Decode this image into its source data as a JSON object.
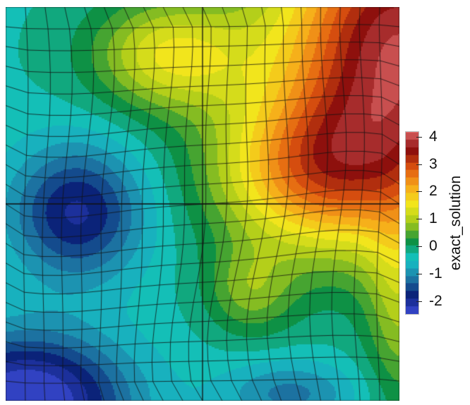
{
  "chart_data": {
    "type": "heatmap",
    "field": "exact_solution",
    "colorbar": {
      "title": "exact_solution",
      "range": [
        -2.5,
        4.2
      ],
      "ticks": [
        {
          "value": 4,
          "label": "4"
        },
        {
          "value": 3,
          "label": "3"
        },
        {
          "value": 2,
          "label": "2"
        },
        {
          "value": 1,
          "label": "1"
        },
        {
          "value": 0,
          "label": "0"
        },
        {
          "value": -1,
          "label": "-1"
        },
        {
          "value": -2,
          "label": "-2"
        }
      ],
      "colormap": [
        "#3b4bd6",
        "#0a1f77",
        "#1f7ea7",
        "#15c6c8",
        "#0e8f3f",
        "#a4c81a",
        "#f2e81c",
        "#f6a81a",
        "#e0560f",
        "#8a0d0d",
        "#d86060"
      ]
    },
    "mesh": {
      "type": "deformed quadrilateral grid",
      "rows": 20,
      "cols": 20,
      "edge_color": "#111111"
    },
    "domain": {
      "xlim": [
        0,
        1
      ],
      "ylim": [
        0,
        1
      ]
    }
  }
}
